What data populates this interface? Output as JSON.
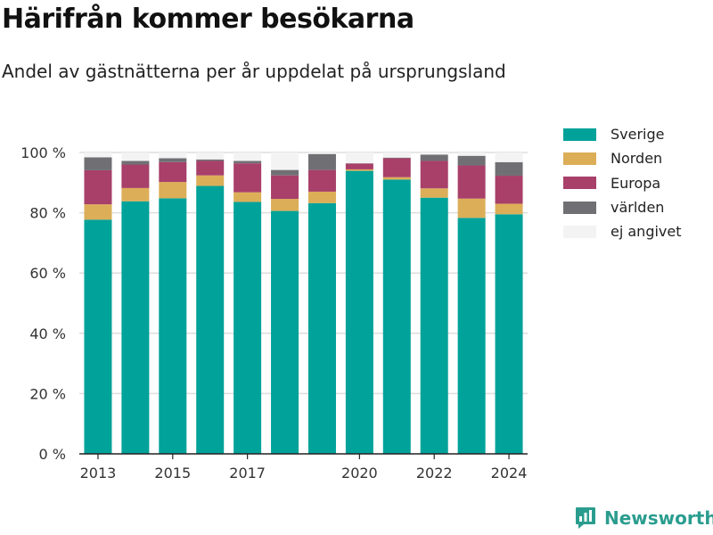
{
  "title": "Härifrån kommer besökarna",
  "subtitle": "Andel av gästnätterna per år uppdelat på ursprungsland",
  "brand": {
    "name": "Newsworthy",
    "color": "#2b9d8f",
    "logo_icon": "bar-chart-speech-bubble-icon"
  },
  "chart_data": {
    "type": "bar",
    "stacked": true,
    "categories": [
      "2013",
      "2014",
      "2015",
      "2016",
      "2017",
      "2018",
      "2019",
      "2020",
      "2021",
      "2022",
      "2023",
      "2024"
    ],
    "x_tick_labels": [
      "2013",
      "2015",
      "2017",
      "2020",
      "2022",
      "2024"
    ],
    "y_tick_labels": [
      "0 %",
      "20 %",
      "40 %",
      "60 %",
      "80 %",
      "100 %"
    ],
    "y_ticks": [
      0,
      20,
      40,
      60,
      80,
      100
    ],
    "ylim": [
      0,
      100
    ],
    "grid": true,
    "legend_position": "right",
    "series": [
      {
        "name": "Sverige",
        "color": "#00a29a",
        "values": [
          77.7,
          83.8,
          84.8,
          88.9,
          83.6,
          80.6,
          83.2,
          93.9,
          91.0,
          85.0,
          78.3,
          79.5
        ]
      },
      {
        "name": "Norden",
        "color": "#dcae58",
        "values": [
          5.1,
          4.4,
          5.4,
          3.5,
          3.2,
          4.0,
          3.8,
          0.5,
          0.8,
          3.1,
          6.4,
          3.5
        ]
      },
      {
        "name": "Europa",
        "color": "#a8406a",
        "values": [
          11.3,
          7.8,
          6.6,
          4.8,
          9.6,
          7.8,
          7.2,
          1.9,
          6.3,
          9.1,
          11.0,
          9.3
        ]
      },
      {
        "name": "världen",
        "color": "#707074",
        "values": [
          4.3,
          1.2,
          1.3,
          0.5,
          0.8,
          1.8,
          5.3,
          0.1,
          0.2,
          2.1,
          3.2,
          4.5
        ]
      },
      {
        "name": "ej angivet",
        "color": "#f3f3f3",
        "values": [
          1.6,
          2.8,
          1.9,
          2.3,
          2.8,
          5.8,
          0.5,
          3.6,
          1.7,
          0.7,
          1.1,
          3.2
        ]
      }
    ]
  }
}
